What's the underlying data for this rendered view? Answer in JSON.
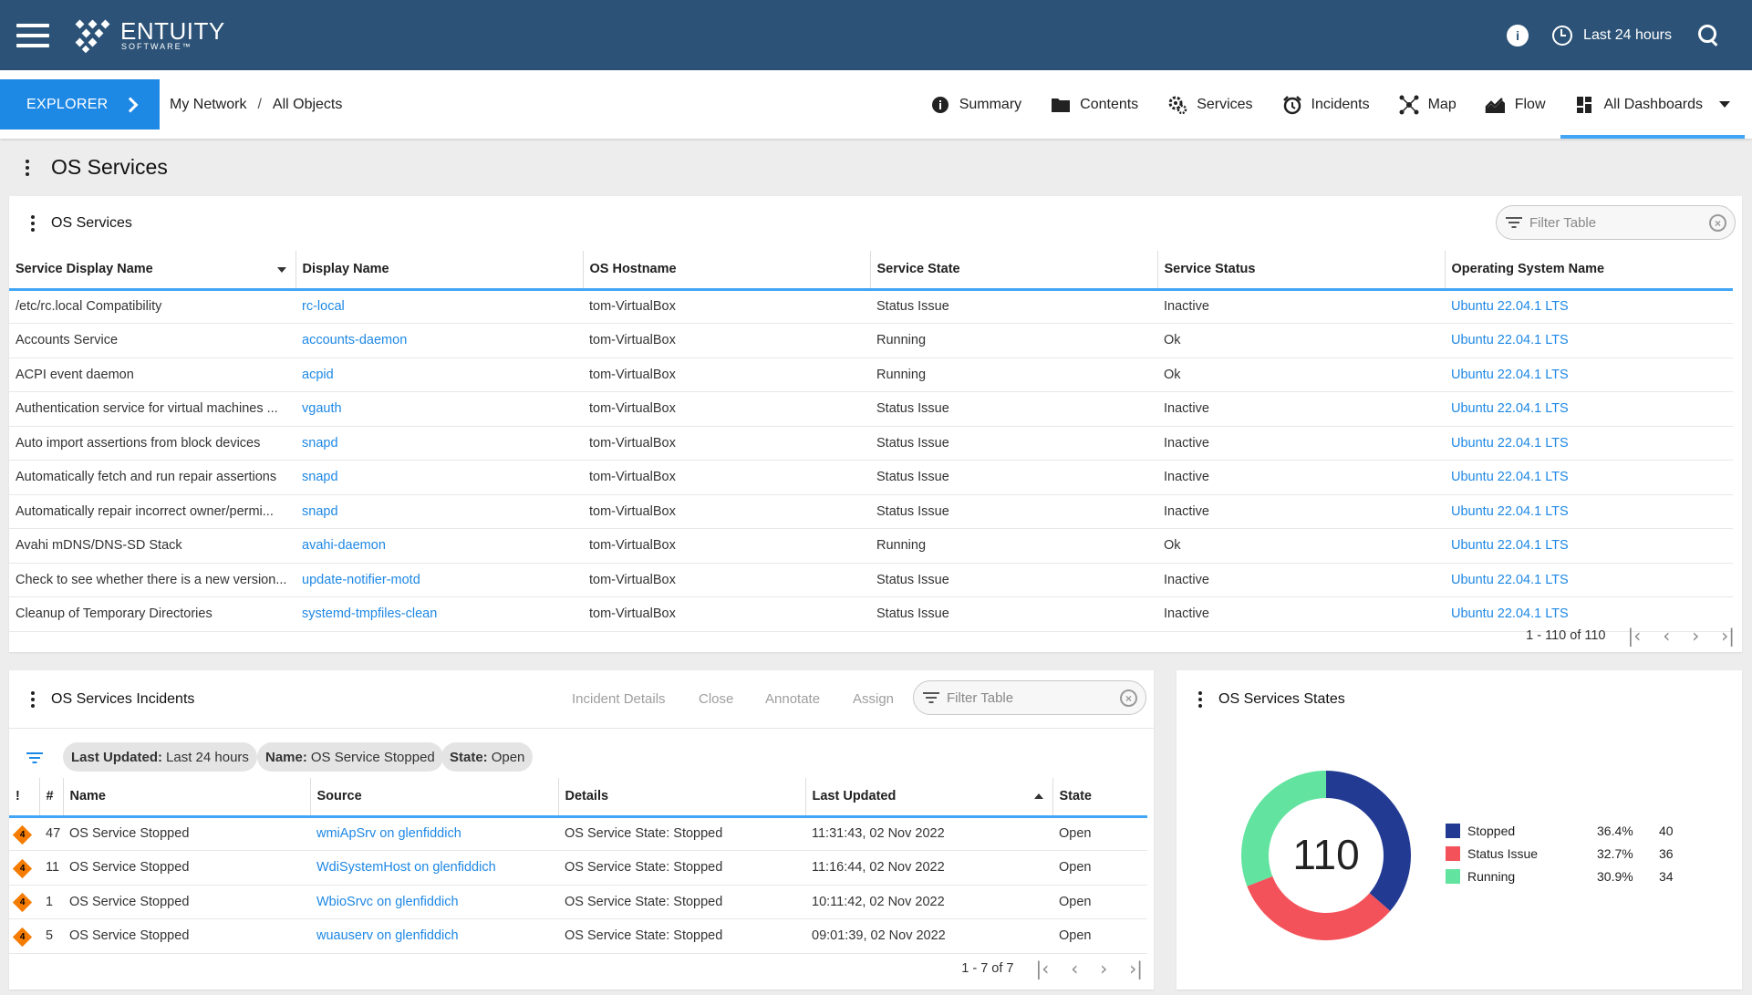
{
  "topbar": {
    "brand": "ENTUITY",
    "brand_sub": "SOFTWARE™",
    "help_glyph": "i",
    "time_range": "Last 24 hours",
    "colors": {
      "bar": "#2c5377"
    }
  },
  "nav": {
    "explorer_label": "EXPLORER",
    "breadcrumb": {
      "root": "My Network",
      "sep": "/",
      "current": "All Objects"
    },
    "tabs": [
      {
        "label": "Summary",
        "icon": "info-icon"
      },
      {
        "label": "Contents",
        "icon": "folder-icon"
      },
      {
        "label": "Services",
        "icon": "services-gear-icon"
      },
      {
        "label": "Incidents",
        "icon": "alarm-clock-icon"
      },
      {
        "label": "Map",
        "icon": "map-network-icon"
      },
      {
        "label": "Flow",
        "icon": "flow-chart-icon"
      },
      {
        "label": "All Dashboards",
        "icon": "dashboards-icon"
      }
    ],
    "accent": "#1e88e5"
  },
  "page_title": "OS Services",
  "services_panel": {
    "title": "OS Services",
    "filter_placeholder": "Filter Table",
    "columns": [
      "Service Display Name",
      "Display Name",
      "OS Hostname",
      "Service State",
      "Service Status",
      "Operating System Name"
    ],
    "rows": [
      [
        "/etc/rc.local Compatibility",
        "rc-local",
        "tom-VirtualBox",
        "Status Issue",
        "Inactive",
        "Ubuntu 22.04.1 LTS"
      ],
      [
        "Accounts Service",
        "accounts-daemon",
        "tom-VirtualBox",
        "Running",
        "Ok",
        "Ubuntu 22.04.1 LTS"
      ],
      [
        "ACPI event daemon",
        "acpid",
        "tom-VirtualBox",
        "Running",
        "Ok",
        "Ubuntu 22.04.1 LTS"
      ],
      [
        "Authentication service for virtual machines ...",
        "vgauth",
        "tom-VirtualBox",
        "Status Issue",
        "Inactive",
        "Ubuntu 22.04.1 LTS"
      ],
      [
        "Auto import assertions from block devices",
        "snapd",
        "tom-VirtualBox",
        "Status Issue",
        "Inactive",
        "Ubuntu 22.04.1 LTS"
      ],
      [
        "Automatically fetch and run repair assertions",
        "snapd",
        "tom-VirtualBox",
        "Status Issue",
        "Inactive",
        "Ubuntu 22.04.1 LTS"
      ],
      [
        "Automatically repair incorrect owner/permi...",
        "snapd",
        "tom-VirtualBox",
        "Status Issue",
        "Inactive",
        "Ubuntu 22.04.1 LTS"
      ],
      [
        "Avahi mDNS/DNS-SD Stack",
        "avahi-daemon",
        "tom-VirtualBox",
        "Running",
        "Ok",
        "Ubuntu 22.04.1 LTS"
      ],
      [
        "Check to see whether there is a new version...",
        "update-notifier-motd",
        "tom-VirtualBox",
        "Status Issue",
        "Inactive",
        "Ubuntu 22.04.1 LTS"
      ],
      [
        "Cleanup of Temporary Directories",
        "systemd-tmpfiles-clean",
        "tom-VirtualBox",
        "Status Issue",
        "Inactive",
        "Ubuntu 22.04.1 LTS"
      ]
    ],
    "pager": "1 - 110 of 110"
  },
  "incidents_panel": {
    "title": "OS Services Incidents",
    "actions": [
      "Incident Details",
      "Close",
      "Annotate",
      "Assign"
    ],
    "filter_placeholder": "Filter Table",
    "chips": [
      {
        "key": "Last Updated:",
        "value": "Last 24 hours"
      },
      {
        "key": "Name:",
        "value": "OS Service Stopped"
      },
      {
        "key": "State:",
        "value": "Open"
      }
    ],
    "columns": [
      "!",
      "#",
      "Name",
      "Source",
      "Details",
      "Last Updated",
      "State"
    ],
    "rows": [
      [
        "4",
        "47",
        "OS Service Stopped",
        "wmiApSrv on glenfiddich",
        "OS Service State: Stopped",
        "11:31:43, 02 Nov 2022",
        "Open"
      ],
      [
        "4",
        "11",
        "OS Service Stopped",
        "WdiSystemHost on glenfiddich",
        "OS Service State: Stopped",
        "11:16:44, 02 Nov 2022",
        "Open"
      ],
      [
        "4",
        "1",
        "OS Service Stopped",
        "WbioSrvc on glenfiddich",
        "OS Service State: Stopped",
        "10:11:42, 02 Nov 2022",
        "Open"
      ],
      [
        "4",
        "5",
        "OS Service Stopped",
        "wuauserv on glenfiddich",
        "OS Service State: Stopped",
        "09:01:39, 02 Nov 2022",
        "Open"
      ]
    ],
    "pager": "1 - 7 of 7",
    "severity_color": "#f57c00"
  },
  "states_panel": {
    "title": "OS Services States",
    "total": "110",
    "chart_data": {
      "type": "pie",
      "donut": true,
      "center_label": "110",
      "categories": [
        "Stopped",
        "Status Issue",
        "Running"
      ],
      "values": [
        40,
        36,
        34
      ],
      "percents": [
        "36.4%",
        "32.7%",
        "30.9%"
      ],
      "counts": [
        "40",
        "36",
        "34"
      ],
      "colors": [
        "#233a93",
        "#f4525a",
        "#62e3a0"
      ],
      "legend_position": "right"
    }
  }
}
